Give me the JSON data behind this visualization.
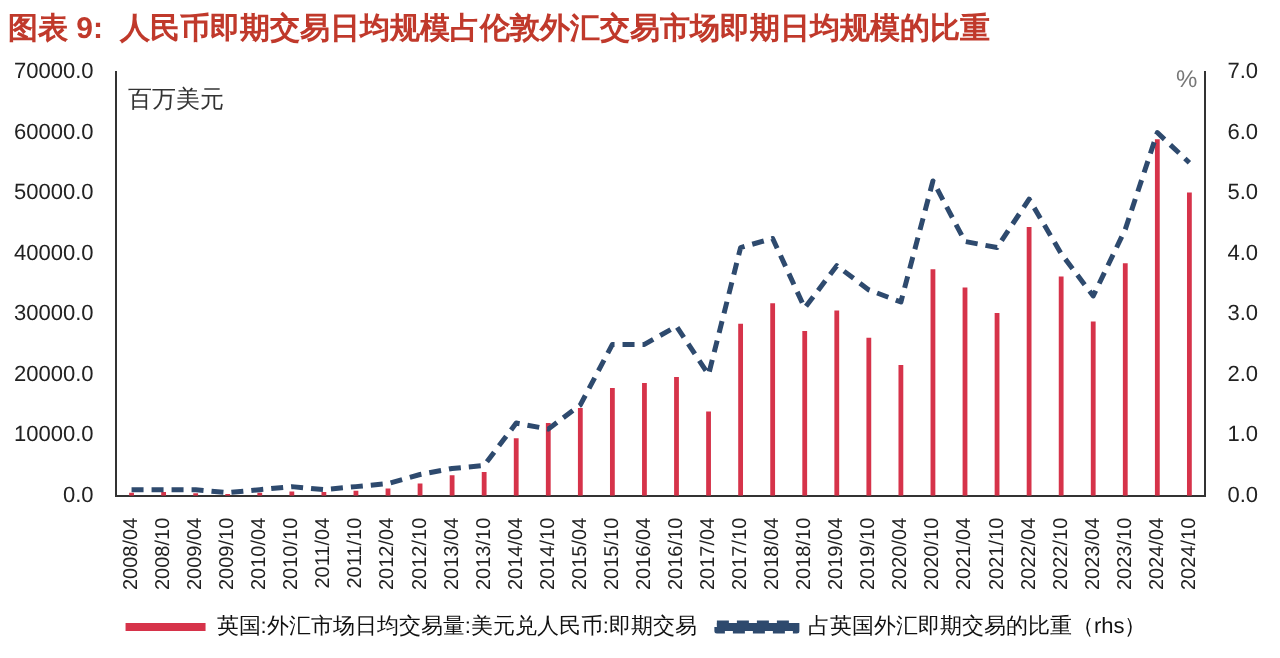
{
  "chart_data": {
    "type": "bar",
    "title": "图表 9:  人民币即期交易日均规模占伦敦外汇交易市场即期日均规模的比重",
    "ylabel": "百万美元",
    "y2label": "%",
    "categories": [
      "2008/04",
      "2008/10",
      "2009/04",
      "2009/10",
      "2010/04",
      "2010/10",
      "2011/04",
      "2011/10",
      "2012/04",
      "2012/10",
      "2013/04",
      "2013/10",
      "2014/04",
      "2014/10",
      "2015/04",
      "2015/10",
      "2016/04",
      "2016/10",
      "2017/04",
      "2017/10",
      "2018/04",
      "2018/10",
      "2019/04",
      "2019/10",
      "2020/04",
      "2020/10",
      "2021/04",
      "2021/10",
      "2022/04",
      "2022/10",
      "2023/04",
      "2023/10",
      "2024/04",
      "2024/10"
    ],
    "series": [
      {
        "name": "英国:外汇市场日均交易量:美元兑人民币:即期交易",
        "color": "#d6334a",
        "values": [
          500,
          600,
          400,
          300,
          500,
          700,
          600,
          800,
          1200,
          2000,
          3400,
          3900,
          9500,
          12000,
          14500,
          17800,
          18600,
          19600,
          13900,
          28400,
          31800,
          27200,
          30600,
          26100,
          21600,
          37400,
          34400,
          30200,
          44400,
          36200,
          28800,
          38400,
          58900,
          50100
        ]
      },
      {
        "name": "占英国外汇即期交易的比重（rhs）",
        "type": "line",
        "axis": "y2",
        "color": "#2e4a6e",
        "line_style": "dashed",
        "marker": "none",
        "values": [
          0.1,
          0.1,
          0.1,
          0.05,
          0.1,
          0.15,
          0.1,
          0.15,
          0.2,
          0.35,
          0.45,
          0.5,
          1.2,
          1.1,
          1.5,
          2.5,
          2.5,
          2.8,
          2.0,
          4.1,
          4.25,
          3.1,
          3.8,
          3.4,
          3.2,
          5.2,
          4.2,
          4.1,
          4.9,
          4.0,
          3.3,
          4.4,
          6.0,
          5.5
        ]
      }
    ],
    "ylim": [
      0,
      70000
    ],
    "yticks": [
      {
        "value": 0,
        "label": "0.0"
      },
      {
        "value": 10000,
        "label": "10000.0"
      },
      {
        "value": 20000,
        "label": "20000.0"
      },
      {
        "value": 30000,
        "label": "30000.0"
      },
      {
        "value": 40000,
        "label": "40000.0"
      },
      {
        "value": 50000,
        "label": "50000.0"
      },
      {
        "value": 60000,
        "label": "60000.0"
      },
      {
        "value": 70000,
        "label": "70000.0"
      }
    ],
    "y2lim": [
      0,
      7
    ],
    "y2ticks": [
      {
        "value": 0,
        "label": "0.0"
      },
      {
        "value": 1,
        "label": "1.0"
      },
      {
        "value": 2,
        "label": "2.0"
      },
      {
        "value": 3,
        "label": "3.0"
      },
      {
        "value": 4,
        "label": "4.0"
      },
      {
        "value": 5,
        "label": "5.0"
      },
      {
        "value": 6,
        "label": "6.0"
      },
      {
        "value": 7,
        "label": "7.0"
      }
    ],
    "grid": false,
    "legend": "bottom"
  }
}
